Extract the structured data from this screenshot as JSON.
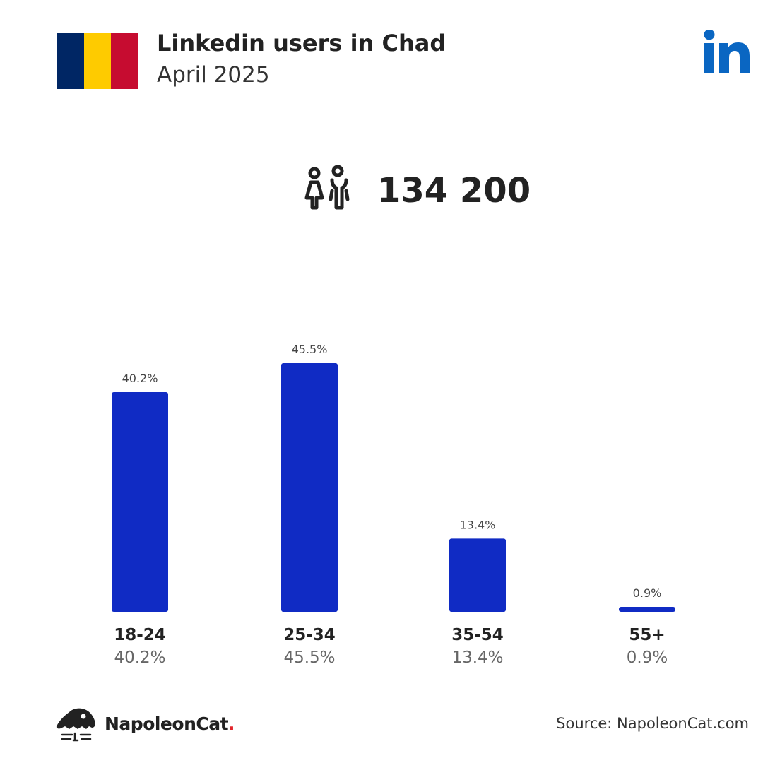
{
  "header": {
    "title": "Linkedin users in Chad",
    "subtitle": "April 2025"
  },
  "flag": {
    "stripes": [
      "#002664",
      "#fecb00",
      "#c60c30"
    ]
  },
  "brand_icon": "linkedin-logo-icon",
  "summary": {
    "icon": "users-icon",
    "total": "134 200"
  },
  "colors": {
    "bar": "#102bc4",
    "linkedin": "#0a66c2",
    "brand_dot": "#e2252b"
  },
  "chart_data": {
    "type": "bar",
    "categories": [
      "18-24",
      "25-34",
      "35-54",
      "55+"
    ],
    "values": [
      40.2,
      45.5,
      13.4,
      0.9
    ],
    "labels": [
      "40.2%",
      "45.5%",
      "13.4%",
      "0.9%"
    ],
    "title": "",
    "xlabel": "",
    "ylabel": "",
    "ylim": [
      0,
      45.5
    ],
    "grid": false
  },
  "footer": {
    "brand_name": "NapoleonCat",
    "brand_dot": ".",
    "source": "Source: NapoleonCat.com"
  }
}
